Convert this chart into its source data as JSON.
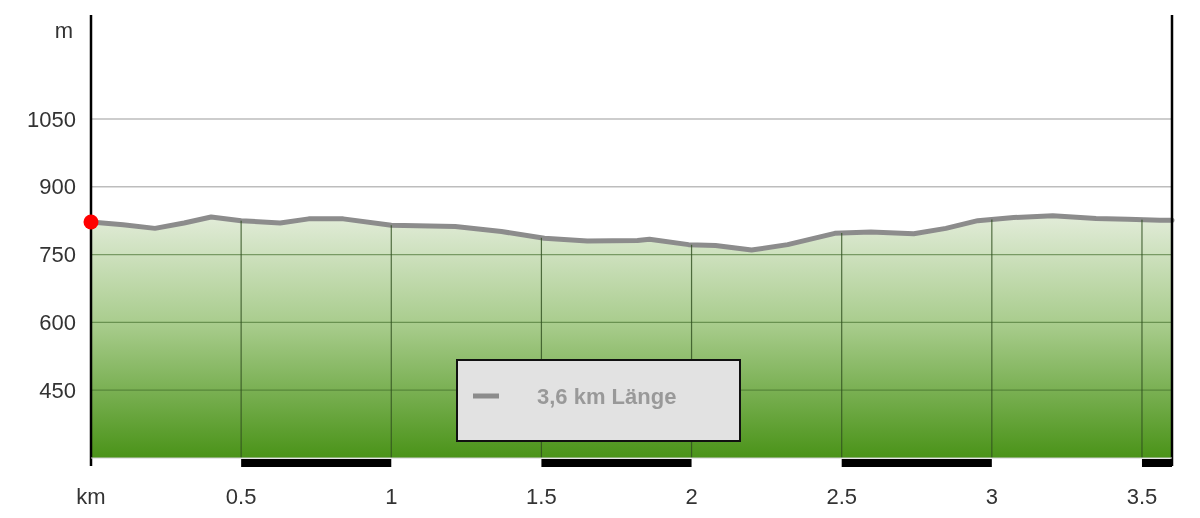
{
  "chart_data": {
    "type": "area",
    "xlabel": "km",
    "ylabel": "m",
    "xlim": [
      0,
      3.6
    ],
    "xticks": [
      0.5,
      1,
      1.5,
      2,
      2.5,
      3,
      3.5
    ],
    "ylim": [
      300,
      1280
    ],
    "yticks": [
      450,
      600,
      750,
      900,
      1050
    ],
    "grid": true,
    "legend": "bottom",
    "series": [
      {
        "name": "3,6 km Länge",
        "color": "#8c8c8c",
        "x": [
          0,
          0.107,
          0.213,
          0.31,
          0.4,
          0.5,
          0.63,
          0.725,
          0.84,
          1.0,
          1.213,
          1.367,
          1.51,
          1.653,
          1.82,
          1.86,
          1.99,
          2.08,
          2.2,
          2.32,
          2.477,
          2.597,
          2.74,
          2.847,
          2.953,
          3.073,
          3.203,
          3.347,
          3.453,
          3.56,
          3.6
        ],
        "values": [
          822,
          816,
          808,
          820,
          833,
          825,
          820,
          829,
          829,
          815,
          812,
          801,
          786,
          780,
          781,
          784,
          772,
          770,
          760,
          772,
          797,
          800,
          796,
          808,
          825,
          832,
          836,
          830,
          828,
          826,
          826
        ]
      },
      {
        "type": "scatter",
        "color": "#ff0000",
        "marker": "circle",
        "x": [
          0
        ],
        "values": [
          822
        ]
      }
    ]
  }
}
